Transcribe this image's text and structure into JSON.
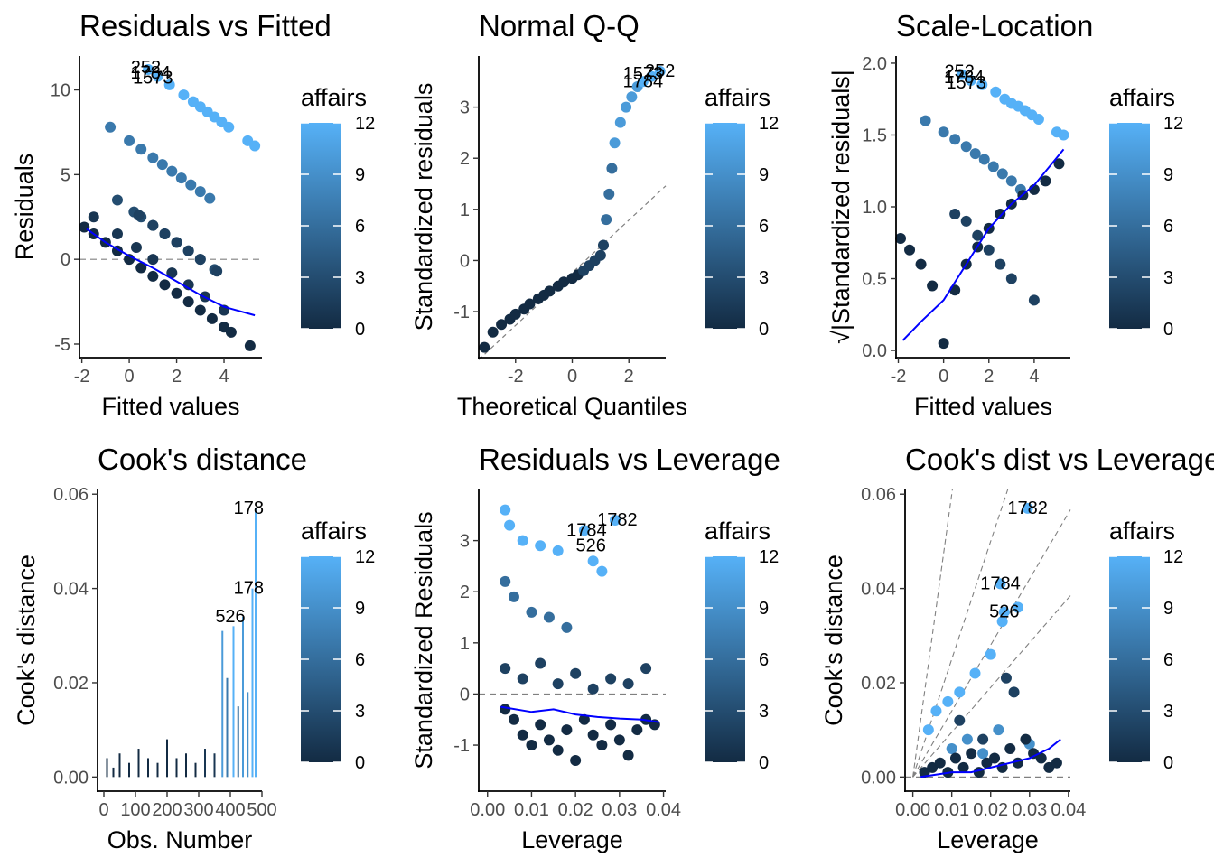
{
  "colors": {
    "scale_low": "#132b43",
    "scale_high": "#56b1f7",
    "smooth_line": "#0000ff",
    "reference_line": "#808080",
    "axis": "#000000"
  },
  "chart_data": [
    {
      "type": "scatter",
      "title": "Residuals vs Fitted",
      "xlabel": "Fitted values",
      "ylabel": "Residuals",
      "xlim": [
        -2.1,
        5.6
      ],
      "ylim": [
        -5.8,
        12.0
      ],
      "xticks": [
        -2,
        0,
        2,
        4
      ],
      "xtick_labels": [
        "-2",
        "0",
        "2",
        "4"
      ],
      "yticks": [
        -5,
        0,
        5,
        10
      ],
      "ytick_labels": [
        "-5",
        "0",
        "5",
        "10"
      ],
      "hline": 0,
      "color_variable": "affairs",
      "series": [
        {
          "affairs": 12,
          "x": [
            0.8,
            1.2,
            1.7,
            2.3,
            2.7,
            3.0,
            3.3,
            3.6,
            3.9,
            4.2,
            5.0,
            5.3
          ],
          "y": [
            11.2,
            10.8,
            10.3,
            9.7,
            9.3,
            9.0,
            8.7,
            8.4,
            8.1,
            7.8,
            7.0,
            6.7
          ]
        },
        {
          "affairs": 7,
          "x": [
            -0.8,
            0.0,
            0.5,
            1.0,
            1.4,
            1.8,
            2.2,
            2.6,
            3.0,
            3.4
          ],
          "y": [
            7.8,
            7.0,
            6.5,
            6.0,
            5.6,
            5.2,
            4.8,
            4.4,
            4.0,
            3.6
          ]
        },
        {
          "affairs": 3,
          "x": [
            -0.5,
            0.2,
            0.5,
            1.0,
            1.5,
            2.0,
            2.5,
            3.0,
            3.6
          ],
          "y": [
            3.5,
            2.8,
            2.5,
            2.0,
            1.5,
            1.0,
            0.5,
            0.0,
            -0.6
          ]
        },
        {
          "affairs": 2,
          "x": [
            0.4,
            1.0,
            1.5,
            2.0,
            2.5,
            3.0,
            3.7
          ],
          "y": [
            2.6,
            2.0,
            1.5,
            1.0,
            0.5,
            0.0,
            -0.7
          ]
        },
        {
          "affairs": 1,
          "x": [
            -1.5,
            -0.5,
            0.3,
            1.0,
            1.8,
            2.5,
            3.2,
            4.0
          ],
          "y": [
            2.5,
            1.5,
            0.7,
            0.0,
            -0.8,
            -1.5,
            -2.2,
            -3.0
          ]
        },
        {
          "affairs": 0,
          "x": [
            -1.9,
            -1.5,
            -1.0,
            -0.5,
            0.0,
            0.5,
            1.0,
            1.5,
            2.0,
            2.5,
            3.0,
            3.5,
            4.0,
            4.3,
            5.1
          ],
          "y": [
            1.9,
            1.5,
            1.0,
            0.5,
            0.0,
            -0.5,
            -1.0,
            -1.5,
            -2.0,
            -2.5,
            -3.0,
            -3.5,
            -4.0,
            -4.3,
            -5.1
          ]
        }
      ],
      "smooth": {
        "x": [
          -1.8,
          -1.0,
          0.0,
          1.0,
          2.0,
          3.0,
          4.0,
          5.3
        ],
        "y": [
          1.8,
          1.0,
          0.2,
          -0.5,
          -1.3,
          -2.1,
          -2.8,
          -3.3
        ]
      },
      "annotations": [
        {
          "text": "252",
          "x": 0.7,
          "y": 11.3
        },
        {
          "text": "1784",
          "x": 0.9,
          "y": 11.0
        },
        {
          "text": "1573",
          "x": 1.0,
          "y": 10.7
        }
      ]
    },
    {
      "type": "scatter",
      "title": "Normal Q-Q",
      "xlabel": "Theoretical Quantiles",
      "ylabel": "Standardized residuals",
      "xlim": [
        -3.3,
        3.3
      ],
      "ylim": [
        -1.9,
        4.0
      ],
      "xticks": [
        -2,
        0,
        2
      ],
      "xtick_labels": [
        "-2",
        "0",
        "2"
      ],
      "yticks": [
        -1,
        0,
        1,
        2,
        3
      ],
      "ytick_labels": [
        "-1",
        "0",
        "1",
        "2",
        "3"
      ],
      "reference_line": {
        "x": [
          -3.3,
          3.3
        ],
        "y": [
          -1.94,
          1.46
        ]
      },
      "color_variable": "affairs",
      "series": [
        {
          "affairs": 0,
          "x": [
            -3.1,
            -2.8,
            -2.5,
            -2.2,
            -2.0,
            -1.7,
            -1.5,
            -1.2,
            -1.0,
            -0.8,
            -0.5,
            -0.3,
            0.0,
            0.2
          ],
          "y": [
            -1.7,
            -1.4,
            -1.25,
            -1.15,
            -1.05,
            -0.95,
            -0.85,
            -0.75,
            -0.68,
            -0.6,
            -0.5,
            -0.42,
            -0.35,
            -0.28
          ]
        },
        {
          "affairs": 2,
          "x": [
            0.4,
            0.6,
            0.8,
            1.0,
            1.1
          ],
          "y": [
            -0.2,
            -0.1,
            0.0,
            0.1,
            0.3
          ]
        },
        {
          "affairs": 6,
          "x": [
            1.2,
            1.3,
            1.4
          ],
          "y": [
            0.8,
            1.3,
            1.8
          ]
        },
        {
          "affairs": 10,
          "x": [
            1.5,
            1.7,
            1.9,
            2.1,
            2.3
          ],
          "y": [
            2.3,
            2.7,
            3.0,
            3.2,
            3.4
          ]
        },
        {
          "affairs": 12,
          "x": [
            2.5,
            2.8,
            3.1
          ],
          "y": [
            3.5,
            3.6,
            3.7
          ]
        }
      ],
      "annotations": [
        {
          "text": "1573",
          "x": 2.5,
          "y": 3.65
        },
        {
          "text": "252",
          "x": 3.1,
          "y": 3.7
        },
        {
          "text": "1784",
          "x": 2.5,
          "y": 3.5
        }
      ]
    },
    {
      "type": "scatter",
      "title": "Scale-Location",
      "xlabel": "Fitted values",
      "ylabel": "√|Standardized residuals|",
      "xlim": [
        -2.1,
        5.6
      ],
      "ylim": [
        -0.05,
        2.05
      ],
      "xticks": [
        -2,
        0,
        2,
        4
      ],
      "xtick_labels": [
        "-2",
        "0",
        "2",
        "4"
      ],
      "yticks": [
        0.0,
        0.5,
        1.0,
        1.5,
        2.0
      ],
      "ytick_labels": [
        "0.0",
        "0.5",
        "1.0",
        "1.5",
        "2.0"
      ],
      "color_variable": "affairs",
      "series": [
        {
          "affairs": 12,
          "x": [
            0.8,
            1.2,
            1.7,
            2.3,
            2.7,
            3.0,
            3.3,
            3.6,
            3.9,
            4.2,
            5.0,
            5.3
          ],
          "y": [
            1.92,
            1.88,
            1.85,
            1.8,
            1.75,
            1.72,
            1.7,
            1.67,
            1.64,
            1.61,
            1.52,
            1.5
          ]
        },
        {
          "affairs": 7,
          "x": [
            -0.8,
            0.0,
            0.5,
            1.0,
            1.4,
            1.8,
            2.2,
            2.6,
            3.0,
            3.4
          ],
          "y": [
            1.6,
            1.52,
            1.47,
            1.42,
            1.37,
            1.33,
            1.28,
            1.23,
            1.18,
            1.12
          ]
        },
        {
          "affairs": 2,
          "x": [
            0.5,
            1.0,
            1.5,
            2.0,
            2.5,
            3.0,
            4.0
          ],
          "y": [
            0.95,
            0.9,
            0.8,
            0.7,
            0.6,
            0.5,
            0.35
          ]
        },
        {
          "affairs": 0,
          "x": [
            -1.9,
            -1.5,
            -1.0,
            -0.5,
            0.0,
            0.5,
            1.0,
            1.5,
            2.0,
            2.5,
            3.0,
            3.5,
            4.0,
            4.5,
            5.1
          ],
          "y": [
            0.78,
            0.7,
            0.6,
            0.45,
            0.05,
            0.42,
            0.6,
            0.72,
            0.85,
            0.95,
            1.02,
            1.08,
            1.12,
            1.18,
            1.3
          ]
        }
      ],
      "smooth": {
        "x": [
          -1.8,
          -1.0,
          0.0,
          1.0,
          2.0,
          3.0,
          4.0,
          5.3
        ],
        "y": [
          0.07,
          0.2,
          0.35,
          0.6,
          0.85,
          1.02,
          1.15,
          1.4
        ]
      },
      "annotations": [
        {
          "text": "252",
          "x": 0.7,
          "y": 1.94
        },
        {
          "text": "1784",
          "x": 0.9,
          "y": 1.9
        },
        {
          "text": "1573",
          "x": 1.0,
          "y": 1.86
        }
      ]
    },
    {
      "type": "bar",
      "title": "Cook's distance",
      "xlabel": "Obs. Number",
      "ylabel": "Cook's distance",
      "xlim": [
        -20,
        500
      ],
      "ylim": [
        -0.003,
        0.061
      ],
      "xticks": [
        0,
        100,
        200,
        300,
        400,
        500
      ],
      "xtick_labels": [
        "0",
        "100",
        "200",
        "300",
        "400",
        "500"
      ],
      "yticks": [
        0.0,
        0.02,
        0.04,
        0.06
      ],
      "ytick_labels": [
        "0.00",
        "0.02",
        "0.04",
        "0.06"
      ],
      "color_variable": "affairs",
      "bars": [
        {
          "x": 10,
          "y": 0.004,
          "affairs": 0
        },
        {
          "x": 30,
          "y": 0.002,
          "affairs": 0
        },
        {
          "x": 50,
          "y": 0.005,
          "affairs": 0
        },
        {
          "x": 80,
          "y": 0.003,
          "affairs": 0
        },
        {
          "x": 110,
          "y": 0.006,
          "affairs": 0
        },
        {
          "x": 140,
          "y": 0.004,
          "affairs": 0
        },
        {
          "x": 170,
          "y": 0.003,
          "affairs": 0
        },
        {
          "x": 200,
          "y": 0.008,
          "affairs": 0
        },
        {
          "x": 230,
          "y": 0.004,
          "affairs": 0
        },
        {
          "x": 260,
          "y": 0.005,
          "affairs": 0
        },
        {
          "x": 290,
          "y": 0.003,
          "affairs": 0
        },
        {
          "x": 320,
          "y": 0.006,
          "affairs": 1
        },
        {
          "x": 350,
          "y": 0.005,
          "affairs": 1
        },
        {
          "x": 375,
          "y": 0.031,
          "affairs": 10
        },
        {
          "x": 390,
          "y": 0.021,
          "affairs": 7
        },
        {
          "x": 410,
          "y": 0.032,
          "affairs": 12
        },
        {
          "x": 425,
          "y": 0.015,
          "affairs": 6
        },
        {
          "x": 440,
          "y": 0.034,
          "affairs": 10
        },
        {
          "x": 455,
          "y": 0.018,
          "affairs": 9
        },
        {
          "x": 470,
          "y": 0.04,
          "affairs": 12
        },
        {
          "x": 480,
          "y": 0.057,
          "affairs": 12
        }
      ],
      "annotations": [
        {
          "text": "178",
          "x": 458,
          "y": 0.057
        },
        {
          "text": "178",
          "x": 458,
          "y": 0.04
        },
        {
          "text": "526",
          "x": 400,
          "y": 0.034
        }
      ]
    },
    {
      "type": "scatter",
      "title": "Residuals vs Leverage",
      "xlabel": "Leverage",
      "ylabel": "Standardized Residuals",
      "xlim": [
        -0.002,
        0.0405
      ],
      "ylim": [
        -1.9,
        4.0
      ],
      "xticks": [
        0.0,
        0.01,
        0.02,
        0.03,
        0.04
      ],
      "xtick_labels": [
        "0.00",
        "0.01",
        "0.02",
        "0.03",
        "0.04"
      ],
      "yticks": [
        -1,
        0,
        1,
        2,
        3
      ],
      "ytick_labels": [
        "-1",
        "0",
        "1",
        "2",
        "3"
      ],
      "hline": 0,
      "color_variable": "affairs",
      "series": [
        {
          "affairs": 12,
          "x": [
            0.004,
            0.005,
            0.008,
            0.012,
            0.016,
            0.022,
            0.024,
            0.029,
            0.026
          ],
          "y": [
            3.6,
            3.3,
            3.0,
            2.9,
            2.8,
            3.2,
            2.6,
            3.4,
            2.4
          ]
        },
        {
          "affairs": 6,
          "x": [
            0.004,
            0.006,
            0.01,
            0.014,
            0.018
          ],
          "y": [
            2.2,
            1.9,
            1.6,
            1.5,
            1.3
          ]
        },
        {
          "affairs": 2,
          "x": [
            0.004,
            0.008,
            0.012,
            0.016,
            0.02,
            0.024,
            0.028,
            0.032,
            0.036
          ],
          "y": [
            0.5,
            0.3,
            0.6,
            0.2,
            0.4,
            0.1,
            0.3,
            0.2,
            0.5
          ]
        },
        {
          "affairs": 0,
          "x": [
            0.004,
            0.006,
            0.008,
            0.01,
            0.012,
            0.014,
            0.016,
            0.018,
            0.02,
            0.022,
            0.024,
            0.026,
            0.028,
            0.03,
            0.032,
            0.034,
            0.036,
            0.038
          ],
          "y": [
            -0.3,
            -0.5,
            -0.8,
            -1.0,
            -0.6,
            -0.9,
            -1.1,
            -0.7,
            -1.3,
            -0.5,
            -0.8,
            -1.0,
            -0.6,
            -0.9,
            -1.2,
            -0.7,
            -0.5,
            -0.6
          ]
        }
      ],
      "smooth": {
        "x": [
          0.003,
          0.01,
          0.015,
          0.02,
          0.025,
          0.03,
          0.035,
          0.039
        ],
        "y": [
          -0.25,
          -0.35,
          -0.3,
          -0.4,
          -0.45,
          -0.48,
          -0.5,
          -0.55
        ]
      },
      "annotations": [
        {
          "text": "1782",
          "x": 0.0295,
          "y": 3.4
        },
        {
          "text": "1784",
          "x": 0.0225,
          "y": 3.2
        },
        {
          "text": "526",
          "x": 0.0235,
          "y": 2.9
        }
      ]
    },
    {
      "type": "scatter",
      "title": "Cook's dist vs Leverage",
      "xlabel": "Leverage",
      "ylabel": "Cook's distance",
      "xlim": [
        -0.002,
        0.0405
      ],
      "ylim": [
        -0.003,
        0.061
      ],
      "xticks": [
        0.0,
        0.01,
        0.02,
        0.03,
        0.04
      ],
      "xtick_labels": [
        "0.00",
        "0.01",
        "0.02",
        "0.03",
        "0.04"
      ],
      "yticks": [
        0.0,
        0.02,
        0.04,
        0.06
      ],
      "ytick_labels": [
        "0.00",
        "0.02",
        "0.04",
        "0.06"
      ],
      "hline": 0,
      "color_variable": "affairs",
      "series": [
        {
          "affairs": 12,
          "x": [
            0.004,
            0.006,
            0.009,
            0.012,
            0.016,
            0.02,
            0.023,
            0.027
          ],
          "y": [
            0.01,
            0.014,
            0.016,
            0.018,
            0.022,
            0.026,
            0.033,
            0.036
          ]
        },
        {
          "affairs": 9,
          "x": [
            0.01,
            0.014,
            0.018,
            0.022,
            0.03
          ],
          "y": [
            0.006,
            0.008,
            0.005,
            0.01,
            0.007
          ]
        },
        {
          "affairs": 2,
          "x": [
            0.012,
            0.018,
            0.024,
            0.026
          ],
          "y": [
            0.012,
            0.008,
            0.021,
            0.018
          ]
        },
        {
          "affairs": 0,
          "x": [
            0.003,
            0.005,
            0.007,
            0.009,
            0.011,
            0.013,
            0.015,
            0.017,
            0.019,
            0.021,
            0.023,
            0.025,
            0.027,
            0.029,
            0.031,
            0.033,
            0.035,
            0.037
          ],
          "y": [
            0.001,
            0.002,
            0.003,
            0.001,
            0.004,
            0.002,
            0.005,
            0.001,
            0.003,
            0.004,
            0.002,
            0.006,
            0.003,
            0.008,
            0.005,
            0.004,
            0.002,
            0.003
          ]
        }
      ],
      "extra_points": [
        {
          "affairs": 12,
          "x": 0.0295,
          "y": 0.057
        },
        {
          "affairs": 12,
          "x": 0.0225,
          "y": 0.041
        },
        {
          "affairs": 12,
          "x": 0.0235,
          "y": 0.035
        }
      ],
      "smooth": {
        "x": [
          0.002,
          0.01,
          0.015,
          0.02,
          0.025,
          0.03,
          0.035,
          0.038
        ],
        "y": [
          0.0,
          0.001,
          0.001,
          0.002,
          0.003,
          0.004,
          0.006,
          0.008
        ]
      },
      "reference_lines": [
        {
          "slope": 6.0
        },
        {
          "slope": 2.5
        },
        {
          "slope": 1.4
        },
        {
          "slope": 0.95
        }
      ],
      "annotations": [
        {
          "text": "1782",
          "x": 0.0295,
          "y": 0.057
        },
        {
          "text": "1784",
          "x": 0.0225,
          "y": 0.041
        },
        {
          "text": "526",
          "x": 0.0235,
          "y": 0.035
        }
      ]
    }
  ],
  "legend": {
    "title": "affairs",
    "ticks": [
      "0",
      "3",
      "6",
      "9",
      "12"
    ]
  }
}
